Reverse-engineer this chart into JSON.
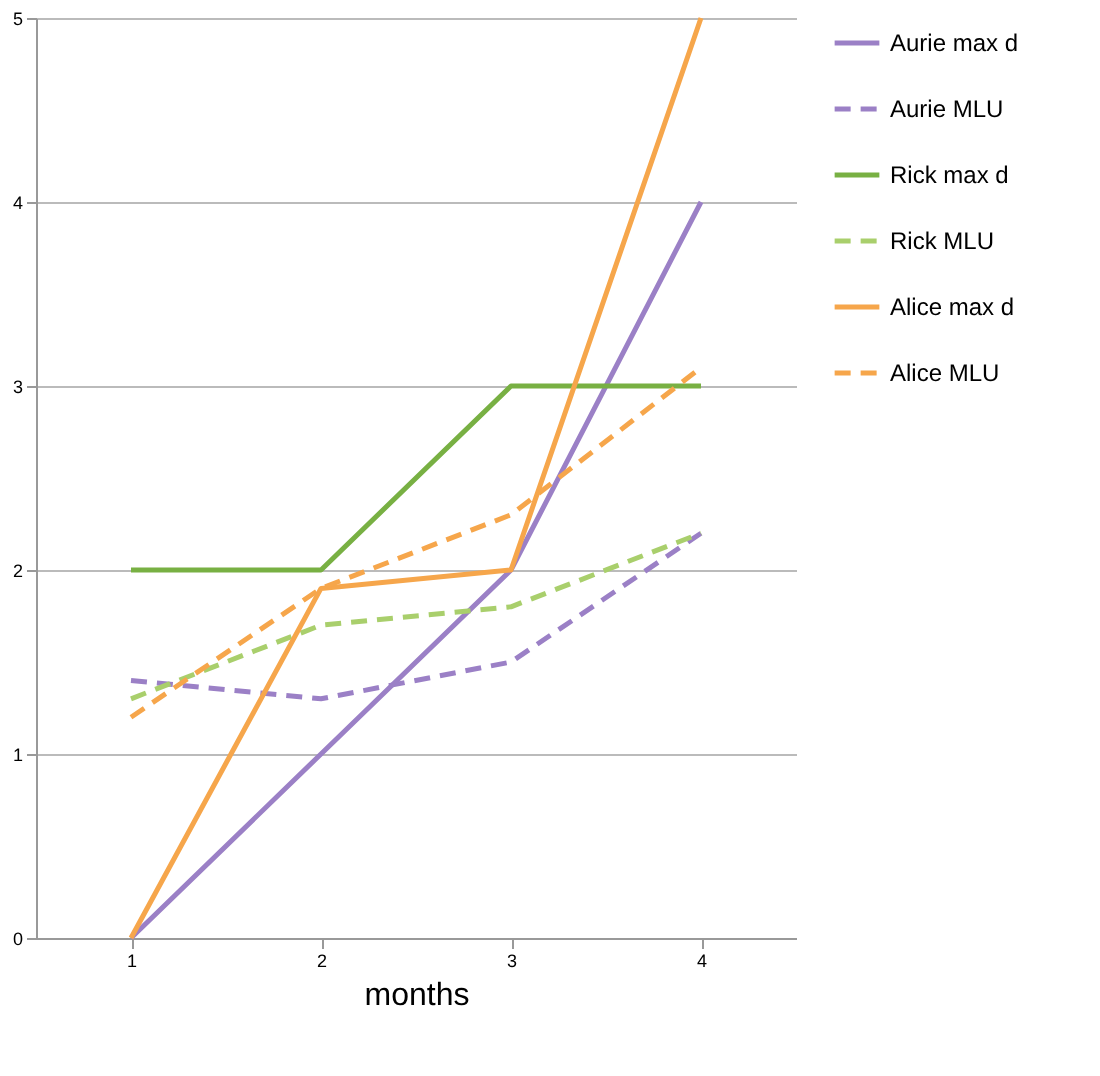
{
  "chart_data": {
    "type": "line",
    "xlabel": "months",
    "categories": [
      "1",
      "2",
      "3",
      "4"
    ],
    "ylim": [
      0,
      5
    ],
    "yticks": [
      0,
      1,
      2,
      3,
      4,
      5
    ],
    "grid": "y",
    "legend": "right",
    "marker": "none",
    "series": [
      {
        "name": "Aurie max d",
        "color": "#9b80c6",
        "line_style": "solid",
        "values": [
          0,
          1,
          2,
          4
        ]
      },
      {
        "name": "Aurie MLU",
        "color": "#9b80c6",
        "line_style": "dashed",
        "values": [
          1.4,
          1.3,
          1.5,
          2.2
        ]
      },
      {
        "name": "Rick max d",
        "color": "#78b043",
        "line_style": "solid",
        "values": [
          2,
          2,
          3,
          3
        ]
      },
      {
        "name": "Rick MLU",
        "color": "#a9cf6c",
        "line_style": "dashed",
        "values": [
          1.3,
          1.7,
          1.8,
          2.2
        ]
      },
      {
        "name": "Alice max d",
        "color": "#f6a64b",
        "line_style": "solid",
        "values": [
          0,
          1.9,
          2,
          5
        ]
      },
      {
        "name": "Alice MLU",
        "color": "#f6a64b",
        "line_style": "dashed",
        "values": [
          1.2,
          1.9,
          2.3,
          3.1
        ]
      }
    ]
  }
}
